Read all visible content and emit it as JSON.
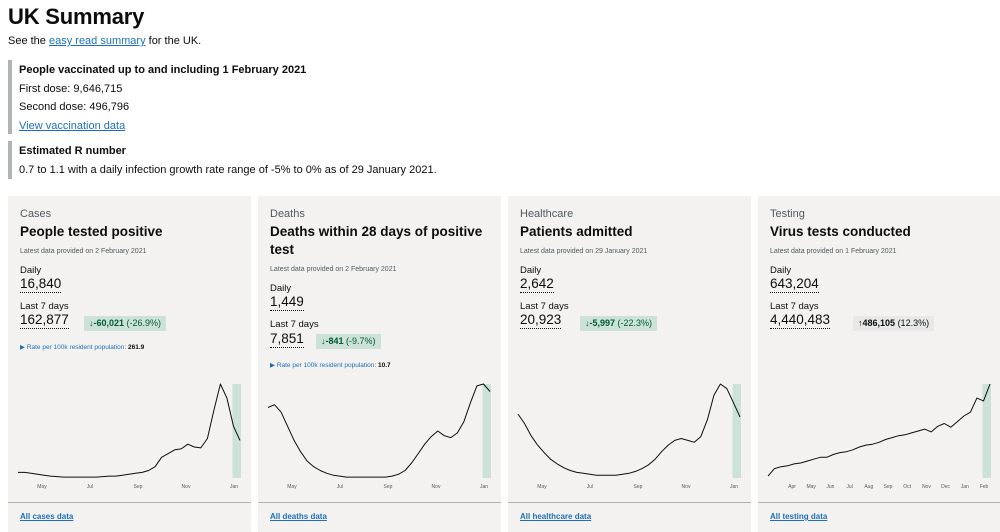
{
  "page": {
    "title": "UK Summary",
    "intro_before": "See the ",
    "intro_link": "easy read summary",
    "intro_after": " for the UK."
  },
  "vaccination": {
    "heading": "People vaccinated up to and including 1 February 2021",
    "first_dose": "First dose: 9,646,715",
    "second_dose": "Second dose: 496,796",
    "link": "View vaccination data"
  },
  "r_number": {
    "heading": "Estimated R number",
    "text": "0.7 to 1.1 with a daily infection growth rate range of -5% to 0% as of 29 January 2021."
  },
  "cards": [
    {
      "category": "Cases",
      "title": "People tested positive",
      "updated": "Latest data provided on 2 February 2021",
      "daily_label": "Daily",
      "daily_value": "16,840",
      "week_label": "Last 7 days",
      "week_value": "162,877",
      "change_direction": "down",
      "change_value": "-60,021",
      "change_pct": "(-26.9%)",
      "rate_label": "Rate per 100k resident population:",
      "rate_value": "261.9",
      "link": "All cases data",
      "months": [
        "May",
        "Jul",
        "Sep",
        "Nov",
        "Jan"
      ],
      "trend": [
        6,
        6,
        5,
        4,
        3,
        2,
        1.5,
        1,
        1,
        1,
        1,
        1,
        1,
        1.5,
        2,
        2,
        3,
        4,
        5,
        6,
        8,
        12,
        22,
        26,
        30,
        31,
        36,
        33,
        32,
        42,
        72,
        100,
        85,
        55,
        40
      ]
    },
    {
      "category": "Deaths",
      "title": "Deaths within 28 days of positive test",
      "updated": "Latest data provided on 2 February 2021",
      "daily_label": "Daily",
      "daily_value": "1,449",
      "week_label": "Last 7 days",
      "week_value": "7,851",
      "change_direction": "down",
      "change_value": "-841",
      "change_pct": "(-9.7%)",
      "rate_label": "Rate per 100k resident population:",
      "rate_value": "10.7",
      "link": "All deaths data",
      "months": [
        "May",
        "Jul",
        "Sep",
        "Nov",
        "Jan"
      ],
      "trend": [
        75,
        78,
        70,
        55,
        40,
        28,
        18,
        12,
        8,
        5,
        3,
        2,
        1,
        1,
        1,
        1,
        1,
        1,
        1,
        2,
        4,
        8,
        16,
        26,
        36,
        44,
        50,
        45,
        43,
        48,
        60,
        80,
        98,
        100,
        92
      ]
    },
    {
      "category": "Healthcare",
      "title": "Patients admitted",
      "updated": "Latest data provided on 29 January 2021",
      "daily_label": "Daily",
      "daily_value": "2,642",
      "week_label": "Last 7 days",
      "week_value": "20,923",
      "change_direction": "down",
      "change_value": "-5,997",
      "change_pct": "(-22.3%)",
      "link": "All healthcare data",
      "months": [
        "May",
        "Jul",
        "Sep",
        "Nov",
        "Jan"
      ],
      "trend": [
        68,
        58,
        45,
        35,
        27,
        20,
        15,
        11,
        8,
        6,
        5,
        4,
        3,
        3,
        3,
        3,
        4,
        5,
        7,
        10,
        14,
        20,
        28,
        35,
        40,
        42,
        40,
        38,
        44,
        62,
        88,
        100,
        95,
        80,
        65
      ]
    },
    {
      "category": "Testing",
      "title": "Virus tests conducted",
      "updated": "Latest data provided on 1 February 2021",
      "daily_label": "Daily",
      "daily_value": "643,204",
      "week_label": "Last 7 days",
      "week_value": "4,440,483",
      "change_direction": "up",
      "change_value": "486,105",
      "change_pct": "(12.3%)",
      "link": "All testing data",
      "months": [
        "Apr",
        "May",
        "Jun",
        "Jul",
        "Aug",
        "Sep",
        "Oct",
        "Nov",
        "Dec",
        "Jan",
        "Feb"
      ],
      "trend": [
        2,
        10,
        12,
        13,
        15,
        16,
        18,
        20,
        22,
        22,
        25,
        27,
        28,
        30,
        33,
        35,
        36,
        38,
        41,
        43,
        45,
        46,
        48,
        50,
        52,
        49,
        55,
        58,
        54,
        60,
        66,
        70,
        85,
        82,
        100
      ]
    }
  ],
  "colors": {
    "link": "#1d70b8",
    "card_bg": "#f3f2f1",
    "trend_line": "#0b0c0c",
    "highlight_band": "#cce2d8",
    "change_down_bg": "#cce2d8",
    "change_down_text": "#005a30",
    "change_up_bg": "#e8e8e8"
  },
  "icons": {
    "change_down": "arrow-down-icon",
    "change_up": "arrow-up-icon",
    "rate_toggle": "triangle-right-icon"
  }
}
